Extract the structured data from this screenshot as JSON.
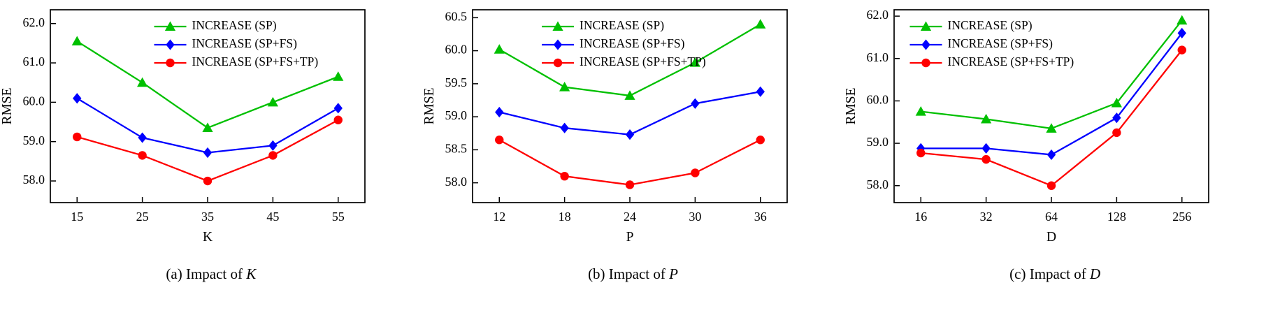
{
  "chart_data": [
    {
      "type": "line",
      "x": [
        15,
        25,
        35,
        45,
        55
      ],
      "xtick_labels": [
        "15",
        "25",
        "35",
        "45",
        "55"
      ],
      "xlabel": "K",
      "ylabel": "RMSE",
      "ylim": [
        57.45,
        62.35
      ],
      "yticks": [
        58,
        59,
        60,
        61,
        62
      ],
      "ytick_labels": [
        "58.0",
        "59.0",
        "60.0",
        "61.0",
        "62.0"
      ],
      "legend_pos": {
        "x": 0.33,
        "y": 24
      },
      "series": [
        {
          "name": "INCREASE (SP)",
          "color": "#00c000",
          "marker": "triangle",
          "values": [
            61.55,
            60.5,
            59.35,
            60.0,
            60.65
          ]
        },
        {
          "name": "INCREASE (SP+FS)",
          "color": "#0000ff",
          "marker": "diamond",
          "values": [
            60.1,
            59.1,
            58.72,
            58.9,
            59.85
          ]
        },
        {
          "name": "INCREASE (SP+FS+TP)",
          "color": "#ff0000",
          "marker": "circle",
          "values": [
            59.12,
            58.65,
            58.0,
            58.65,
            59.55
          ]
        }
      ],
      "caption_prefix": "(a) Impact of ",
      "caption_var": "K"
    },
    {
      "type": "line",
      "x": [
        12,
        18,
        24,
        30,
        36
      ],
      "xtick_labels": [
        "12",
        "18",
        "24",
        "30",
        "36"
      ],
      "xlabel": "P",
      "ylabel": "RMSE",
      "ylim": [
        57.7,
        60.62
      ],
      "yticks": [
        58,
        58.5,
        59,
        59.5,
        60,
        60.5
      ],
      "ytick_labels": [
        "58.0",
        "58.5",
        "59.0",
        "59.5",
        "60.0",
        "60.5"
      ],
      "legend_pos": {
        "x": 0.22,
        "y": 24
      },
      "series": [
        {
          "name": "INCREASE (SP)",
          "color": "#00c000",
          "marker": "triangle",
          "values": [
            60.02,
            59.45,
            59.32,
            59.82,
            60.4
          ]
        },
        {
          "name": "INCREASE (SP+FS)",
          "color": "#0000ff",
          "marker": "diamond",
          "values": [
            59.07,
            58.83,
            58.73,
            59.2,
            59.38
          ]
        },
        {
          "name": "INCREASE (SP+FS+TP)",
          "color": "#ff0000",
          "marker": "circle",
          "values": [
            58.65,
            58.1,
            57.97,
            58.15,
            58.65
          ]
        }
      ],
      "caption_prefix": "(b) Impact of ",
      "caption_var": "P"
    },
    {
      "type": "line",
      "x": [
        16,
        32,
        64,
        128,
        256
      ],
      "xtick_labels": [
        "16",
        "32",
        "64",
        "128",
        "256"
      ],
      "xlabel": "D",
      "ylabel": "RMSE",
      "ylim": [
        57.6,
        62.15
      ],
      "yticks": [
        58,
        59,
        60,
        61,
        62
      ],
      "ytick_labels": [
        "58.0",
        "59.0",
        "60.0",
        "61.0",
        "62.0"
      ],
      "legend_pos": {
        "x": 0.05,
        "y": 24
      },
      "series": [
        {
          "name": "INCREASE (SP)",
          "color": "#00c000",
          "marker": "triangle",
          "values": [
            59.75,
            59.57,
            59.35,
            59.95,
            61.9
          ]
        },
        {
          "name": "INCREASE (SP+FS)",
          "color": "#0000ff",
          "marker": "diamond",
          "values": [
            58.88,
            58.88,
            58.73,
            59.6,
            61.6
          ]
        },
        {
          "name": "INCREASE (SP+FS+TP)",
          "color": "#ff0000",
          "marker": "circle",
          "values": [
            58.77,
            58.62,
            58.0,
            59.25,
            61.2
          ]
        }
      ],
      "caption_prefix": "(c) Impact of ",
      "caption_var": "D"
    }
  ]
}
